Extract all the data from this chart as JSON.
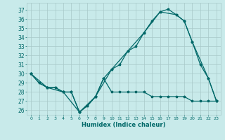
{
  "xlabel": "Humidex (Indice chaleur)",
  "bg_color": "#c8eaea",
  "grid_color": "#a8c8c8",
  "line_color": "#006868",
  "ylim": [
    25.5,
    37.8
  ],
  "xlim": [
    -0.5,
    23.5
  ],
  "yticks": [
    26,
    27,
    28,
    29,
    30,
    31,
    32,
    33,
    34,
    35,
    36,
    37
  ],
  "xticks": [
    0,
    1,
    2,
    3,
    4,
    5,
    6,
    7,
    8,
    9,
    10,
    11,
    12,
    13,
    14,
    15,
    16,
    17,
    18,
    19,
    20,
    21,
    22,
    23
  ],
  "line1_x": [
    0,
    1,
    2,
    3,
    4,
    5,
    6,
    7,
    8,
    9,
    10,
    11,
    12,
    13,
    14,
    15,
    16,
    17,
    18,
    19,
    20,
    21,
    22,
    23
  ],
  "line1_y": [
    30,
    29,
    28.5,
    28.5,
    28,
    28,
    25.8,
    26.5,
    27.5,
    29.5,
    30.5,
    31,
    32.5,
    33,
    34.5,
    35.8,
    36.8,
    37.1,
    36.5,
    35.8,
    33.5,
    31,
    29.5,
    27
  ],
  "line2_x": [
    0,
    1,
    2,
    3,
    4,
    5,
    6,
    7,
    8,
    9,
    10,
    11,
    12,
    13,
    14,
    15,
    16,
    17,
    18,
    19,
    20,
    21,
    22,
    23
  ],
  "line2_y": [
    30,
    29,
    28.5,
    28.5,
    28,
    28,
    25.8,
    26.5,
    27.5,
    29.5,
    28,
    28,
    28,
    28,
    28,
    27.5,
    27.5,
    27.5,
    27.5,
    27.5,
    27,
    27,
    27,
    27
  ],
  "line3_x": [
    0,
    2,
    4,
    6,
    8,
    10,
    12,
    14,
    16,
    18,
    19,
    20,
    22,
    23
  ],
  "line3_y": [
    30,
    28.5,
    28,
    25.8,
    27.5,
    30.5,
    32.5,
    34.5,
    36.8,
    36.5,
    35.8,
    33.5,
    29.5,
    27
  ]
}
